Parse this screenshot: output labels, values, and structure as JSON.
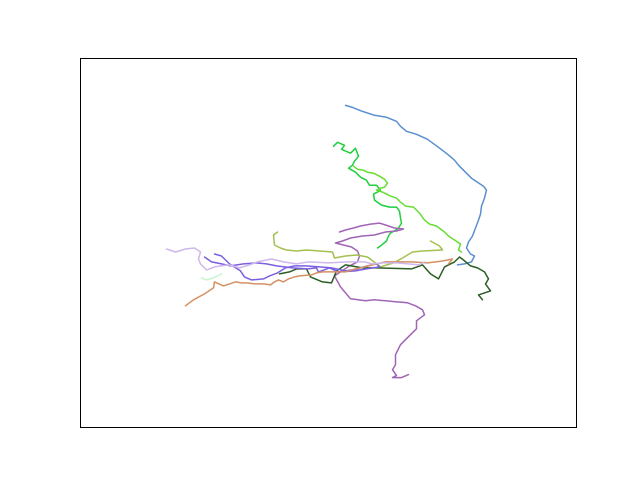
{
  "chart_data": {
    "type": "line",
    "title": "",
    "xlabel": "",
    "ylabel": "",
    "axes_visible": false,
    "grid": false,
    "legend": "none",
    "xlim": [
      0,
      496
    ],
    "ylim": [
      0,
      370
    ],
    "series": [
      {
        "color": "#5b8fd0",
        "points": [
          [
            265,
            323
          ],
          [
            272,
            321
          ],
          [
            282,
            317
          ],
          [
            294,
            313
          ],
          [
            306,
            311
          ],
          [
            316,
            307
          ],
          [
            320,
            302
          ],
          [
            326,
            297
          ],
          [
            336,
            294
          ],
          [
            347,
            289
          ],
          [
            358,
            281
          ],
          [
            367,
            274
          ],
          [
            374,
            268
          ],
          [
            378,
            263
          ],
          [
            385,
            256
          ],
          [
            391,
            250
          ],
          [
            397,
            246
          ],
          [
            403,
            242
          ],
          [
            406,
            238
          ],
          [
            404,
            230
          ],
          [
            401,
            222
          ],
          [
            400,
            214
          ],
          [
            398,
            208
          ],
          [
            395,
            200
          ],
          [
            392,
            192
          ],
          [
            388,
            186
          ],
          [
            386,
            180
          ],
          [
            390,
            174
          ],
          [
            394,
            172
          ],
          [
            391,
            166
          ],
          [
            384,
            164
          ],
          [
            377,
            163
          ]
        ]
      },
      {
        "color": "#1fcf3f",
        "points": [
          [
            253,
            282
          ],
          [
            257,
            286
          ],
          [
            264,
            283
          ],
          [
            261,
            279
          ],
          [
            270,
            275
          ],
          [
            275,
            280
          ],
          [
            278,
            272
          ],
          [
            274,
            267
          ],
          [
            272,
            263
          ],
          [
            268,
            260
          ],
          [
            275,
            256
          ],
          [
            280,
            251
          ],
          [
            286,
            248
          ],
          [
            289,
            243
          ],
          [
            296,
            243
          ],
          [
            300,
            238
          ],
          [
            297,
            236
          ],
          [
            293,
            234
          ],
          [
            294,
            228
          ],
          [
            301,
            223
          ],
          [
            309,
            221
          ],
          [
            316,
            221
          ],
          [
            319,
            217
          ],
          [
            320,
            210
          ],
          [
            321,
            205
          ],
          [
            318,
            200
          ],
          [
            314,
            197
          ],
          [
            310,
            195
          ],
          [
            308,
            192
          ],
          [
            306,
            187
          ],
          [
            300,
            182
          ],
          [
            297,
            180
          ]
        ]
      },
      {
        "color": "#66dd33",
        "points": [
          [
            273,
            262
          ],
          [
            277,
            259
          ],
          [
            283,
            258
          ],
          [
            287,
            256
          ],
          [
            293,
            255
          ],
          [
            299,
            252
          ],
          [
            304,
            249
          ],
          [
            307,
            245
          ],
          [
            304,
            241
          ],
          [
            300,
            240
          ],
          [
            296,
            238
          ],
          [
            302,
            236
          ],
          [
            310,
            232
          ],
          [
            316,
            230
          ],
          [
            320,
            226
          ],
          [
            325,
            222
          ],
          [
            333,
            221
          ],
          [
            339,
            215
          ],
          [
            344,
            208
          ],
          [
            349,
            204
          ],
          [
            356,
            202
          ],
          [
            364,
            196
          ],
          [
            368,
            192
          ],
          [
            374,
            188
          ],
          [
            380,
            184
          ],
          [
            378,
            178
          ],
          [
            381,
            176
          ]
        ]
      },
      {
        "color": "#a065b5",
        "points": [
          [
            259,
            196
          ],
          [
            265,
            198
          ],
          [
            273,
            200
          ],
          [
            280,
            202
          ],
          [
            290,
            204
          ],
          [
            299,
            205
          ],
          [
            305,
            203
          ],
          [
            314,
            200
          ],
          [
            323,
            199
          ],
          [
            316,
            197
          ],
          [
            305,
            196
          ],
          [
            294,
            193
          ],
          [
            282,
            192
          ],
          [
            270,
            190
          ],
          [
            262,
            187
          ],
          [
            255,
            185
          ],
          [
            271,
            181
          ],
          [
            277,
            177
          ],
          [
            279,
            172
          ],
          [
            277,
            166
          ],
          [
            269,
            162
          ],
          [
            254,
            152
          ],
          [
            260,
            141
          ],
          [
            270,
            129
          ],
          [
            285,
            127
          ],
          [
            294,
            128
          ],
          [
            305,
            127
          ],
          [
            315,
            126
          ],
          [
            327,
            125
          ],
          [
            335,
            122
          ],
          [
            342,
            118
          ],
          [
            344,
            113
          ],
          [
            336,
            107
          ],
          [
            336,
            99
          ],
          [
            328,
            91
          ],
          [
            320,
            83
          ],
          [
            315,
            73
          ],
          [
            315,
            63
          ],
          [
            312,
            58
          ],
          [
            316,
            52
          ],
          [
            312,
            50
          ],
          [
            321,
            50
          ],
          [
            328,
            53
          ]
        ]
      },
      {
        "color": "#a4c050",
        "points": [
          [
            197,
            196
          ],
          [
            193,
            193
          ],
          [
            194,
            183
          ],
          [
            200,
            180
          ],
          [
            206,
            178
          ],
          [
            216,
            177
          ],
          [
            226,
            178
          ],
          [
            252,
            176
          ],
          [
            254,
            170
          ],
          [
            265,
            172
          ],
          [
            276,
            173
          ],
          [
            287,
            171
          ],
          [
            300,
            161
          ],
          [
            313,
            165
          ],
          [
            322,
            170
          ],
          [
            332,
            176
          ],
          [
            342,
            177
          ],
          [
            362,
            178
          ],
          [
            359,
            182
          ],
          [
            350,
            187
          ]
        ]
      },
      {
        "color": "#2a5e23",
        "points": [
          [
            199,
            154
          ],
          [
            209,
            156
          ],
          [
            216,
            159
          ],
          [
            226,
            159
          ],
          [
            230,
            151
          ],
          [
            242,
            146
          ],
          [
            251,
            145
          ],
          [
            256,
            157
          ],
          [
            265,
            163
          ],
          [
            282,
            160
          ],
          [
            298,
            160
          ],
          [
            331,
            159
          ],
          [
            342,
            163
          ],
          [
            350,
            154
          ],
          [
            358,
            149
          ],
          [
            364,
            161
          ],
          [
            374,
            166
          ],
          [
            379,
            171
          ],
          [
            383,
            168
          ],
          [
            390,
            162
          ],
          [
            397,
            160
          ],
          [
            404,
            156
          ],
          [
            408,
            149
          ],
          [
            405,
            144
          ],
          [
            410,
            137
          ],
          [
            398,
            133
          ],
          [
            402,
            128
          ]
        ]
      },
      {
        "color": "#7c5fe2",
        "points": [
          [
            134,
            174
          ],
          [
            141,
            172
          ],
          [
            149,
            164
          ],
          [
            160,
            157
          ],
          [
            164,
            151
          ],
          [
            171,
            148
          ],
          [
            183,
            149
          ],
          [
            189,
            152
          ],
          [
            197,
            155
          ],
          [
            205,
            160
          ],
          [
            214,
            162
          ],
          [
            225,
            162
          ],
          [
            239,
            161
          ],
          [
            251,
            160
          ],
          [
            265,
            157
          ],
          [
            277,
            159
          ],
          [
            287,
            162
          ],
          [
            296,
            164
          ],
          [
            299,
            161
          ],
          [
            286,
            159
          ],
          [
            275,
            157
          ],
          [
            258,
            156
          ],
          [
            249,
            160
          ],
          [
            238,
            156
          ],
          [
            236,
            160
          ],
          [
            227,
            159
          ],
          [
            212,
            160
          ],
          [
            196,
            162
          ],
          [
            186,
            164
          ],
          [
            176,
            165
          ],
          [
            163,
            164
          ],
          [
            150,
            162
          ],
          [
            141,
            164
          ],
          [
            131,
            166
          ],
          [
            124,
            171
          ]
        ]
      },
      {
        "color": "#d59063",
        "points": [
          [
            105,
            122
          ],
          [
            113,
            128
          ],
          [
            124,
            134
          ],
          [
            133,
            140
          ],
          [
            134,
            146
          ],
          [
            143,
            142
          ],
          [
            155,
            146
          ],
          [
            161,
            145
          ],
          [
            166,
            145
          ],
          [
            175,
            144
          ],
          [
            183,
            144
          ],
          [
            190,
            143
          ],
          [
            194,
            146
          ],
          [
            198,
            148
          ],
          [
            203,
            146
          ],
          [
            208,
            149
          ],
          [
            214,
            151
          ],
          [
            219,
            152
          ],
          [
            231,
            153
          ],
          [
            236,
            155
          ],
          [
            242,
            156
          ],
          [
            254,
            156
          ],
          [
            265,
            156
          ],
          [
            275,
            159
          ],
          [
            284,
            161
          ],
          [
            296,
            164
          ],
          [
            305,
            166
          ],
          [
            313,
            166
          ],
          [
            331,
            166
          ],
          [
            347,
            165
          ],
          [
            362,
            167
          ],
          [
            372,
            169
          ],
          [
            368,
            164
          ]
        ]
      },
      {
        "color": "#cfb8ea",
        "points": [
          [
            86,
            179
          ],
          [
            95,
            176
          ],
          [
            105,
            179
          ],
          [
            114,
            180
          ],
          [
            120,
            176
          ],
          [
            118,
            169
          ],
          [
            120,
            164
          ],
          [
            126,
            158
          ],
          [
            134,
            161
          ],
          [
            140,
            162
          ],
          [
            149,
            163
          ],
          [
            159,
            160
          ],
          [
            169,
            163
          ],
          [
            177,
            166
          ],
          [
            191,
            169
          ],
          [
            203,
            166
          ],
          [
            216,
            164
          ],
          [
            228,
            166
          ],
          [
            248,
            165
          ],
          [
            268,
            166
          ],
          [
            284,
            166
          ],
          [
            292,
            164
          ],
          [
            302,
            165
          ],
          [
            316,
            165
          ],
          [
            339,
            163
          ],
          [
            344,
            166
          ]
        ]
      },
      {
        "color": "#c8f5cc",
        "points": [
          [
            121,
            150
          ],
          [
            126,
            148
          ],
          [
            133,
            150
          ],
          [
            141,
            154
          ]
        ]
      }
    ]
  }
}
